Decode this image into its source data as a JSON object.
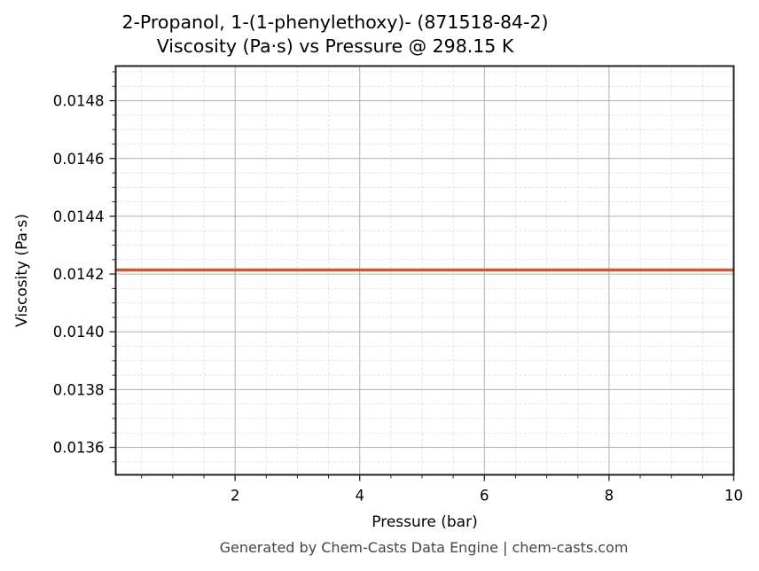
{
  "chart_data": {
    "type": "line",
    "title": "2-Propanol, 1-(1-phenylethoxy)- (871518-84-2)",
    "subtitle": "Viscosity (Pa·s) vs Pressure @ 298.15 K",
    "xlabel": "Pressure (bar)",
    "ylabel": "Viscosity (Pa·s)",
    "xlim": [
      0.085,
      10
    ],
    "ylim": [
      0.013505,
      0.01492
    ],
    "x_ticks": [
      2,
      4,
      6,
      8,
      10
    ],
    "x_tick_labels": [
      "2",
      "4",
      "6",
      "8",
      "10"
    ],
    "y_ticks": [
      0.0136,
      0.0138,
      0.014,
      0.0142,
      0.0144,
      0.0146,
      0.0148
    ],
    "y_tick_labels": [
      "0.0136",
      "0.0138",
      "0.0140",
      "0.0142",
      "0.0144",
      "0.0146",
      "0.0148"
    ],
    "grid": true,
    "minor_grid": true,
    "legend": null,
    "series": [
      {
        "name": "Viscosity",
        "color": "#d6562b",
        "x": [
          0.085,
          1,
          2,
          3,
          4,
          5,
          6,
          7,
          8,
          9,
          10
        ],
        "values": [
          0.014214,
          0.014214,
          0.014214,
          0.014214,
          0.014214,
          0.014214,
          0.014214,
          0.014214,
          0.014214,
          0.014214,
          0.014214
        ]
      }
    ]
  },
  "footer": "Generated by Chem-Casts Data Engine | chem-casts.com"
}
